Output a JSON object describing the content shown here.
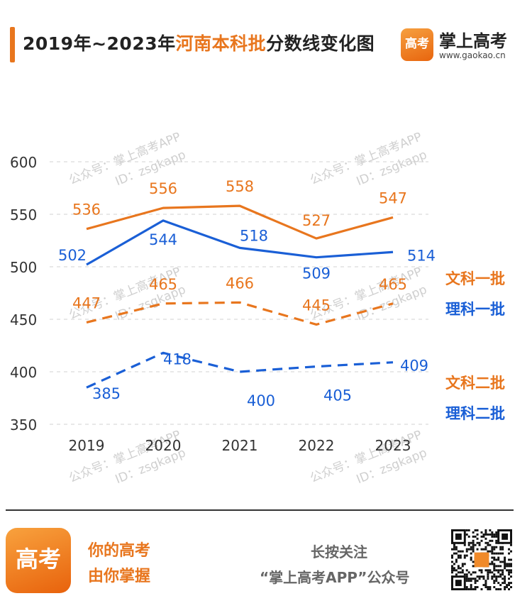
{
  "header": {
    "title_prefix": "2019年~2023年",
    "title_highlight": "河南本科批",
    "title_suffix": "分数线变化图"
  },
  "brand": {
    "logo_text": "高考",
    "name": "掌上高考",
    "url": "www.gaokao.cn"
  },
  "watermark": {
    "line1": "公众号：掌上高考APP",
    "line2": "ID：zsgkapp"
  },
  "chart_data": {
    "type": "line",
    "title": "2019年~2023年河南本科批分数线变化图",
    "categories": [
      "2019",
      "2020",
      "2021",
      "2022",
      "2023"
    ],
    "ylim": [
      350,
      600
    ],
    "yticks": [
      350,
      400,
      450,
      500,
      550,
      600
    ],
    "grid": true,
    "legend_position": "right",
    "series": [
      {
        "name": "文科一批",
        "values": [
          536,
          556,
          558,
          527,
          547
        ],
        "color": "#e8761e",
        "dashed": false
      },
      {
        "name": "理科一批",
        "values": [
          502,
          544,
          518,
          509,
          514
        ],
        "color": "#1a5fd6",
        "dashed": false
      },
      {
        "name": "文科二批",
        "values": [
          447,
          465,
          466,
          445,
          465
        ],
        "color": "#e8761e",
        "dashed": true
      },
      {
        "name": "理科二批",
        "values": [
          385,
          418,
          400,
          405,
          409
        ],
        "color": "#1a5fd6",
        "dashed": true
      }
    ]
  },
  "footer": {
    "logo_text": "高考",
    "slogan_line1": "你的高考",
    "slogan_line2": "由你掌握",
    "follow_line1": "长按关注",
    "follow_line2": "“掌上高考APP”公众号"
  }
}
